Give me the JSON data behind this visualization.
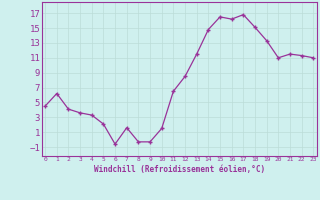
{
  "x": [
    0,
    1,
    2,
    3,
    4,
    5,
    6,
    7,
    8,
    9,
    10,
    11,
    12,
    13,
    14,
    15,
    16,
    17,
    18,
    19,
    20,
    21,
    22,
    23
  ],
  "y": [
    4.5,
    6.2,
    4.1,
    3.6,
    3.3,
    2.1,
    -0.6,
    1.6,
    -0.3,
    -0.3,
    1.5,
    6.5,
    8.5,
    11.5,
    14.8,
    16.5,
    16.2,
    16.8,
    15.1,
    13.3,
    11.0,
    11.5,
    11.3,
    11.0
  ],
  "y_ticks": [
    -1,
    1,
    3,
    5,
    7,
    9,
    11,
    13,
    15,
    17
  ],
  "ylim": [
    -2.2,
    18.5
  ],
  "xlim": [
    -0.3,
    23.3
  ],
  "line_color": "#993399",
  "marker_color": "#993399",
  "bg_color": "#cff0ee",
  "grid_color": "#bbddd8",
  "xlabel": "Windchill (Refroidissement éolien,°C)",
  "xlabel_color": "#993399",
  "tick_color": "#993399",
  "spine_color": "#993399"
}
